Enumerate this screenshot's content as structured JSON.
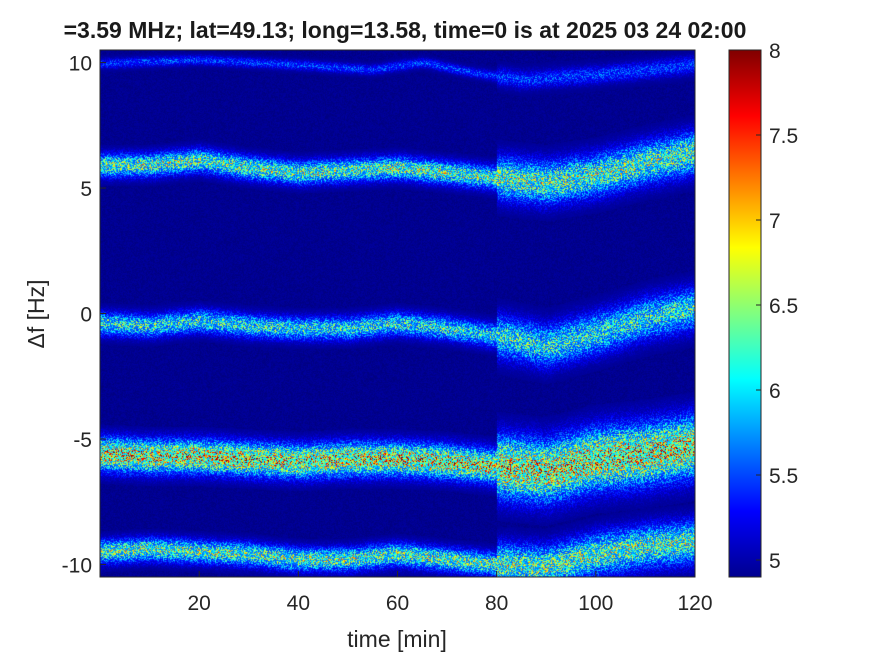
{
  "chart_data": {
    "type": "heatmap",
    "title": "=3.59 MHz;  lat=49.13; long=13.58, time=0 is at 2025 03 24 02:00",
    "xlabel": "time [min]",
    "ylabel": "Δf [Hz]",
    "xlim": [
      0,
      120
    ],
    "ylim": [
      -10.5,
      10.5
    ],
    "x_ticks": [
      "20",
      "40",
      "60",
      "80",
      "100",
      "120"
    ],
    "y_ticks": [
      "-10",
      "-5",
      "0",
      "5",
      "10"
    ],
    "colorbar": {
      "colormap": "jet",
      "range": [
        4.9,
        8
      ],
      "ticks": [
        "5",
        "5.5",
        "6",
        "6.5",
        "7",
        "7.5",
        "8"
      ]
    },
    "background_value": 4.95,
    "bands": [
      {
        "base": 10.0,
        "width": 0.15,
        "peak": 5.7,
        "x": [
          0,
          20,
          40,
          55,
          65,
          75,
          85,
          100,
          120
        ],
        "y": [
          9.95,
          10.1,
          9.9,
          9.7,
          10.0,
          9.6,
          9.3,
          9.5,
          9.9
        ]
      },
      {
        "base": 5.9,
        "width": 0.35,
        "peak": 6.9,
        "x": [
          0,
          10,
          20,
          30,
          40,
          50,
          60,
          70,
          80,
          90,
          100,
          110,
          120
        ],
        "y": [
          5.9,
          5.9,
          6.1,
          5.8,
          5.6,
          5.7,
          5.8,
          5.6,
          5.4,
          5.2,
          5.5,
          6.0,
          6.4
        ]
      },
      {
        "base": -0.4,
        "width": 0.35,
        "peak": 6.6,
        "x": [
          0,
          10,
          20,
          30,
          40,
          50,
          60,
          70,
          80,
          90,
          100,
          110,
          120
        ],
        "y": [
          -0.4,
          -0.5,
          -0.3,
          -0.5,
          -0.6,
          -0.6,
          -0.4,
          -0.6,
          -0.9,
          -1.3,
          -0.8,
          -0.2,
          0.2
        ]
      },
      {
        "base": -5.6,
        "width": 0.5,
        "peak": 7.6,
        "x": [
          0,
          10,
          20,
          30,
          40,
          50,
          60,
          70,
          80,
          90,
          100,
          110,
          120
        ],
        "y": [
          -5.6,
          -5.7,
          -5.7,
          -5.8,
          -5.9,
          -5.8,
          -5.8,
          -5.9,
          -6.1,
          -6.3,
          -5.8,
          -5.6,
          -5.3
        ]
      },
      {
        "base": -9.5,
        "width": 0.35,
        "peak": 6.9,
        "x": [
          0,
          10,
          20,
          30,
          40,
          50,
          60,
          70,
          80,
          90,
          100,
          110,
          120
        ],
        "y": [
          -9.5,
          -9.4,
          -9.5,
          -9.6,
          -9.8,
          -9.8,
          -9.6,
          -9.8,
          -10.0,
          -10.1,
          -9.6,
          -9.3,
          -9.1
        ]
      }
    ]
  }
}
